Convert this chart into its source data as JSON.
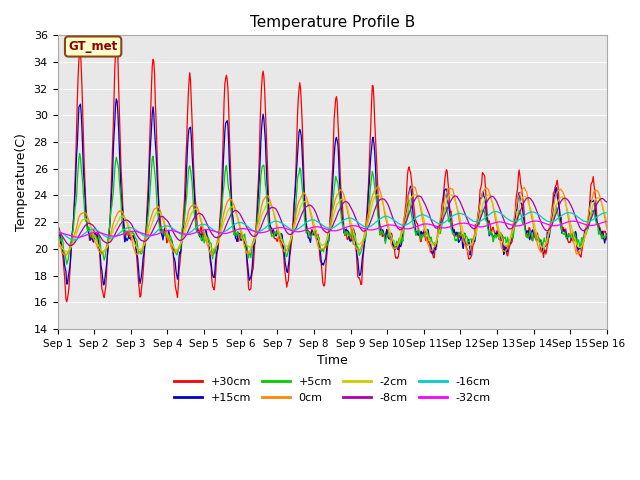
{
  "title": "Temperature Profile B",
  "xlabel": "Time",
  "ylabel": "Temperature(C)",
  "ylim": [
    14,
    36
  ],
  "yticks": [
    14,
    16,
    18,
    20,
    22,
    24,
    26,
    28,
    30,
    32,
    34,
    36
  ],
  "x_labels": [
    "Sep 1",
    "Sep 2",
    "Sep 3",
    "Sep 4",
    "Sep 5",
    "Sep 6",
    "Sep 7",
    "Sep 8",
    "Sep 9",
    "Sep 10",
    "Sep 11",
    "Sep 12",
    "Sep 13",
    "Sep 14",
    "Sep 15",
    "Sep 16"
  ],
  "legend_entries": [
    "+30cm",
    "+15cm",
    "+5cm",
    "0cm",
    "-2cm",
    "-8cm",
    "-16cm",
    "-32cm"
  ],
  "legend_colors": [
    "#ff0000",
    "#0000cc",
    "#00cc00",
    "#ff8800",
    "#cccc00",
    "#aa00aa",
    "#00cccc",
    "#ff00ff"
  ],
  "gt_met_label": "GT_met",
  "background_color": "#e8e8e8",
  "figsize": [
    6.4,
    4.8
  ],
  "dpi": 100
}
